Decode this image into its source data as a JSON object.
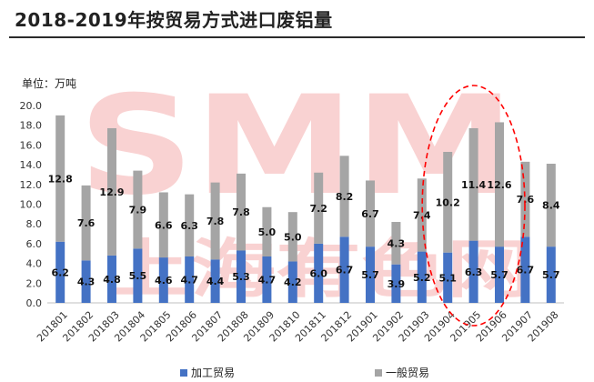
{
  "title": "2018-2019年按贸易方式进口废铝量",
  "unit_label": "单位：万吨",
  "watermark": {
    "logo": "SMM",
    "text": "上海有色网"
  },
  "colors": {
    "processing": "#4472c4",
    "general": "#a5a5a5",
    "watermark": "#f08080",
    "highlight": "#ff0000"
  },
  "chart_data": {
    "type": "bar",
    "stacked": true,
    "categories": [
      "201801",
      "201802",
      "201803",
      "201804",
      "201805",
      "201806",
      "201807",
      "201808",
      "201809",
      "201810",
      "201811",
      "201812",
      "201901",
      "201902",
      "201903",
      "201904",
      "201905",
      "201906",
      "201907",
      "201908"
    ],
    "series": [
      {
        "name": "加工贸易",
        "values": [
          6.2,
          4.3,
          4.8,
          5.5,
          4.6,
          4.7,
          4.4,
          5.3,
          4.7,
          4.2,
          6.0,
          6.7,
          5.7,
          3.9,
          5.2,
          5.1,
          6.3,
          5.7,
          6.7,
          5.7
        ]
      },
      {
        "name": "一般贸易",
        "values": [
          12.8,
          7.6,
          12.9,
          7.9,
          6.6,
          6.3,
          7.8,
          7.8,
          5.0,
          5.0,
          7.2,
          8.2,
          6.7,
          4.3,
          7.4,
          10.2,
          11.4,
          12.6,
          7.6,
          8.4
        ]
      }
    ],
    "ylim": [
      0,
      20
    ],
    "yticks": [
      "0.0",
      "2.0",
      "4.0",
      "6.0",
      "8.0",
      "10.0",
      "12.0",
      "14.0",
      "16.0",
      "18.0",
      "20.0"
    ],
    "highlight_categories": [
      "201904",
      "201905",
      "201906"
    ],
    "legend_position": "bottom",
    "grid": false
  },
  "legend": {
    "processing": "加工贸易",
    "general": "一般贸易"
  }
}
